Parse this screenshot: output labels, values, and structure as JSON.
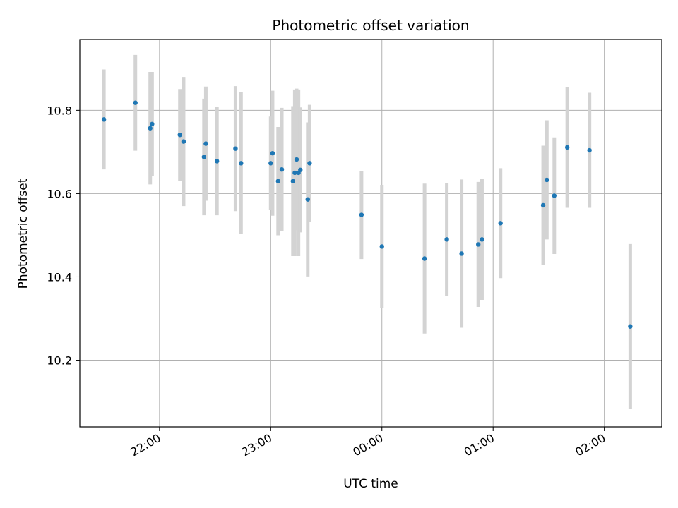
{
  "chart_data": {
    "type": "scatter",
    "title": "Photometric offset variation",
    "xlabel": "UTC time",
    "ylabel": "Photometric offset",
    "x_unit": "UTC time (hours, times after midnight shown as 24+h)",
    "xlim": [
      "21:17",
      "02:31"
    ],
    "ylim": [
      10.04,
      10.97
    ],
    "x_ticks": [
      "22:00",
      "23:00",
      "00:00",
      "01:00",
      "02:00"
    ],
    "y_ticks": [
      "10.2",
      "10.4",
      "10.6",
      "10.8"
    ],
    "grid": true,
    "marker_color": "#1f77b4",
    "errorbar_color": "#d3d3d3",
    "points": [
      {
        "t": "21:30",
        "y": 10.778,
        "err": 0.12
      },
      {
        "t": "21:47",
        "y": 10.818,
        "err": 0.115
      },
      {
        "t": "21:55",
        "y": 10.757,
        "err": 0.135
      },
      {
        "t": "21:56",
        "y": 10.767,
        "err": 0.125
      },
      {
        "t": "22:11",
        "y": 10.741,
        "err": 0.11
      },
      {
        "t": "22:13",
        "y": 10.725,
        "err": 0.155
      },
      {
        "t": "22:24",
        "y": 10.688,
        "err": 0.14
      },
      {
        "t": "22:25",
        "y": 10.72,
        "err": 0.137
      },
      {
        "t": "22:31",
        "y": 10.678,
        "err": 0.13
      },
      {
        "t": "22:41",
        "y": 10.708,
        "err": 0.15
      },
      {
        "t": "22:44",
        "y": 10.673,
        "err": 0.17
      },
      {
        "t": "23:00",
        "y": 10.673,
        "err": 0.112
      },
      {
        "t": "23:01",
        "y": 10.697,
        "err": 0.15
      },
      {
        "t": "23:04",
        "y": 10.63,
        "err": 0.13
      },
      {
        "t": "23:06",
        "y": 10.658,
        "err": 0.148
      },
      {
        "t": "23:12",
        "y": 10.63,
        "err": 0.18
      },
      {
        "t": "23:13",
        "y": 10.65,
        "err": 0.2
      },
      {
        "t": "23:14",
        "y": 10.682,
        "err": 0.17
      },
      {
        "t": "23:15",
        "y": 10.65,
        "err": 0.2
      },
      {
        "t": "23:16",
        "y": 10.657,
        "err": 0.15
      },
      {
        "t": "23:20",
        "y": 10.586,
        "err": 0.185
      },
      {
        "t": "23:21",
        "y": 10.673,
        "err": 0.14
      },
      {
        "t": "23:49",
        "y": 10.549,
        "err": 0.106
      },
      {
        "t": "00:00",
        "y": 10.473,
        "err": 0.148
      },
      {
        "t": "00:23",
        "y": 10.444,
        "err": 0.18
      },
      {
        "t": "00:35",
        "y": 10.49,
        "err": 0.135
      },
      {
        "t": "00:43",
        "y": 10.456,
        "err": 0.178
      },
      {
        "t": "00:52",
        "y": 10.478,
        "err": 0.15
      },
      {
        "t": "00:54",
        "y": 10.49,
        "err": 0.145
      },
      {
        "t": "01:04",
        "y": 10.529,
        "err": 0.132
      },
      {
        "t": "01:27",
        "y": 10.572,
        "err": 0.143
      },
      {
        "t": "01:29",
        "y": 10.633,
        "err": 0.143
      },
      {
        "t": "01:33",
        "y": 10.595,
        "err": 0.14
      },
      {
        "t": "01:40",
        "y": 10.711,
        "err": 0.145
      },
      {
        "t": "01:52",
        "y": 10.704,
        "err": 0.138
      },
      {
        "t": "02:14",
        "y": 10.281,
        "err": 0.198
      }
    ]
  }
}
